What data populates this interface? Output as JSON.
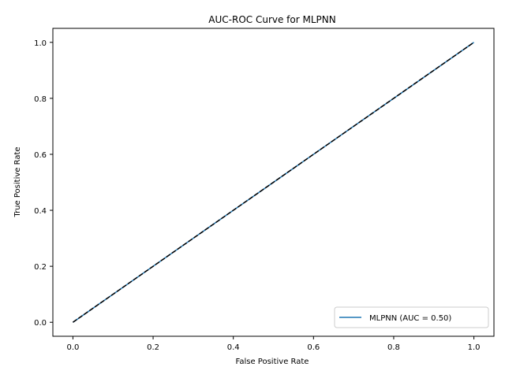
{
  "chart_data": {
    "type": "line",
    "title": "AUC-ROC Curve for MLPNN",
    "xlabel": "False Positive Rate",
    "ylabel": "True Positive Rate",
    "xlim": [
      -0.05,
      1.05
    ],
    "ylim": [
      -0.05,
      1.05
    ],
    "xticks": [
      "0.0",
      "0.2",
      "0.4",
      "0.6",
      "0.8",
      "1.0"
    ],
    "yticks": [
      "0.0",
      "0.2",
      "0.4",
      "0.6",
      "0.8",
      "1.0"
    ],
    "grid": false,
    "legend_position": "lower-right",
    "series": [
      {
        "name": "MLPNN (AUC = 0.50)",
        "x": [
          0.0,
          1.0
        ],
        "y": [
          0.0,
          1.0
        ],
        "color": "#1f77b4",
        "style": "solid"
      }
    ],
    "reference_line": {
      "x": [
        0.0,
        1.0
      ],
      "y": [
        0.0,
        1.0
      ],
      "color": "#000000",
      "style": "dashed"
    }
  }
}
